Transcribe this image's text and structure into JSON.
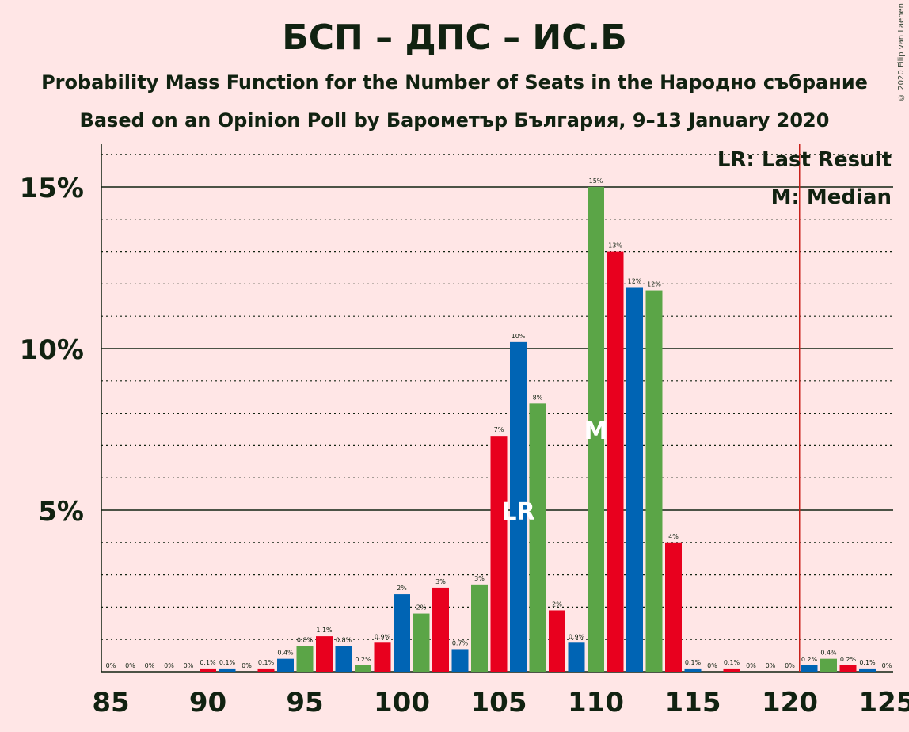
{
  "chart_data": {
    "type": "bar",
    "title": "БСП – ДПС – ИС.Б",
    "subtitle": "Probability Mass Function for the Number of Seats in the Народно събрание",
    "subtitle2": "Based on an Opinion Poll by Барометър България, 9–13 January 2020",
    "copyright": "© 2020 Filip van Laenen",
    "xlabel": "",
    "ylabel": "",
    "ylim": [
      0,
      16.3
    ],
    "xlim": [
      84.5,
      125.5
    ],
    "x_ticks": [
      85,
      90,
      95,
      100,
      105,
      110,
      115,
      120,
      125
    ],
    "y_ticks": [
      {
        "value": 5,
        "label": "5%"
      },
      {
        "value": 10,
        "label": "10%"
      },
      {
        "value": 15,
        "label": "15%"
      }
    ],
    "grid": "dotted minor every 1%, solid major every 5%",
    "last_result_seat": 106,
    "median_seat": 110,
    "majority_line_x": 120.5,
    "legend": [
      "LR: Last Result",
      "M: Median"
    ],
    "markers": {
      "last_result": "LR",
      "median": "M"
    },
    "colors": {
      "red": "#e8001e",
      "blue": "#0064b4",
      "green": "#5ba547",
      "line": "#c8201a"
    },
    "bars": [
      {
        "x": 85,
        "value": 0,
        "label": "0%",
        "color": "red"
      },
      {
        "x": 86,
        "value": 0,
        "label": "0%",
        "color": "blue"
      },
      {
        "x": 87,
        "value": 0,
        "label": "0%",
        "color": "green"
      },
      {
        "x": 88,
        "value": 0,
        "label": "0%",
        "color": "red"
      },
      {
        "x": 89,
        "value": 0,
        "label": "0%",
        "color": "blue"
      },
      {
        "x": 90,
        "value": 0.1,
        "label": "0.1%",
        "color": "red"
      },
      {
        "x": 91,
        "value": 0.1,
        "label": "0.1%",
        "color": "blue"
      },
      {
        "x": 92,
        "value": 0,
        "label": "0%",
        "color": "green"
      },
      {
        "x": 93,
        "value": 0.1,
        "label": "0.1%",
        "color": "red"
      },
      {
        "x": 94,
        "value": 0.4,
        "label": "0.4%",
        "color": "blue"
      },
      {
        "x": 95,
        "value": 0.8,
        "label": "0.8%",
        "color": "green"
      },
      {
        "x": 96,
        "value": 1.1,
        "label": "1.1%",
        "color": "red"
      },
      {
        "x": 97,
        "value": 0.8,
        "label": "0.8%",
        "color": "blue"
      },
      {
        "x": 98,
        "value": 0.2,
        "label": "0.2%",
        "color": "green"
      },
      {
        "x": 99,
        "value": 0.9,
        "label": "0.9%",
        "color": "red"
      },
      {
        "x": 100,
        "value": 2.4,
        "label": "2%",
        "color": "blue"
      },
      {
        "x": 101,
        "value": 1.8,
        "label": "2%",
        "color": "green"
      },
      {
        "x": 102,
        "value": 2.6,
        "label": "3%",
        "color": "red"
      },
      {
        "x": 103,
        "value": 0.7,
        "label": "0.7%",
        "color": "blue"
      },
      {
        "x": 104,
        "value": 2.7,
        "label": "3%",
        "color": "green"
      },
      {
        "x": 105,
        "value": 7.3,
        "label": "7%",
        "color": "red"
      },
      {
        "x": 106,
        "value": 10.2,
        "label": "10%",
        "color": "blue"
      },
      {
        "x": 107,
        "value": 8.3,
        "label": "8%",
        "color": "green"
      },
      {
        "x": 108,
        "value": 1.9,
        "label": "2%",
        "color": "red"
      },
      {
        "x": 109,
        "value": 0.9,
        "label": "0.9%",
        "color": "blue"
      },
      {
        "x": 110,
        "value": 15.0,
        "label": "15%",
        "color": "green"
      },
      {
        "x": 111,
        "value": 13.0,
        "label": "13%",
        "color": "red"
      },
      {
        "x": 112,
        "value": 11.9,
        "label": "12%",
        "color": "blue"
      },
      {
        "x": 113,
        "value": 11.8,
        "label": "12%",
        "color": "green"
      },
      {
        "x": 114,
        "value": 4.0,
        "label": "4%",
        "color": "red"
      },
      {
        "x": 115,
        "value": 0.1,
        "label": "0.1%",
        "color": "blue"
      },
      {
        "x": 116,
        "value": 0,
        "label": "0%",
        "color": "green"
      },
      {
        "x": 117,
        "value": 0.1,
        "label": "0.1%",
        "color": "red"
      },
      {
        "x": 118,
        "value": 0,
        "label": "0%",
        "color": "blue"
      },
      {
        "x": 119,
        "value": 0,
        "label": "0%",
        "color": "green"
      },
      {
        "x": 120,
        "value": 0,
        "label": "0%",
        "color": "red"
      },
      {
        "x": 121,
        "value": 0.2,
        "label": "0.2%",
        "color": "blue"
      },
      {
        "x": 122,
        "value": 0.4,
        "label": "0.4%",
        "color": "green"
      },
      {
        "x": 123,
        "value": 0.2,
        "label": "0.2%",
        "color": "red"
      },
      {
        "x": 124,
        "value": 0.1,
        "label": "0.1%",
        "color": "blue"
      },
      {
        "x": 125,
        "value": 0,
        "label": "0%",
        "color": "green"
      }
    ]
  }
}
